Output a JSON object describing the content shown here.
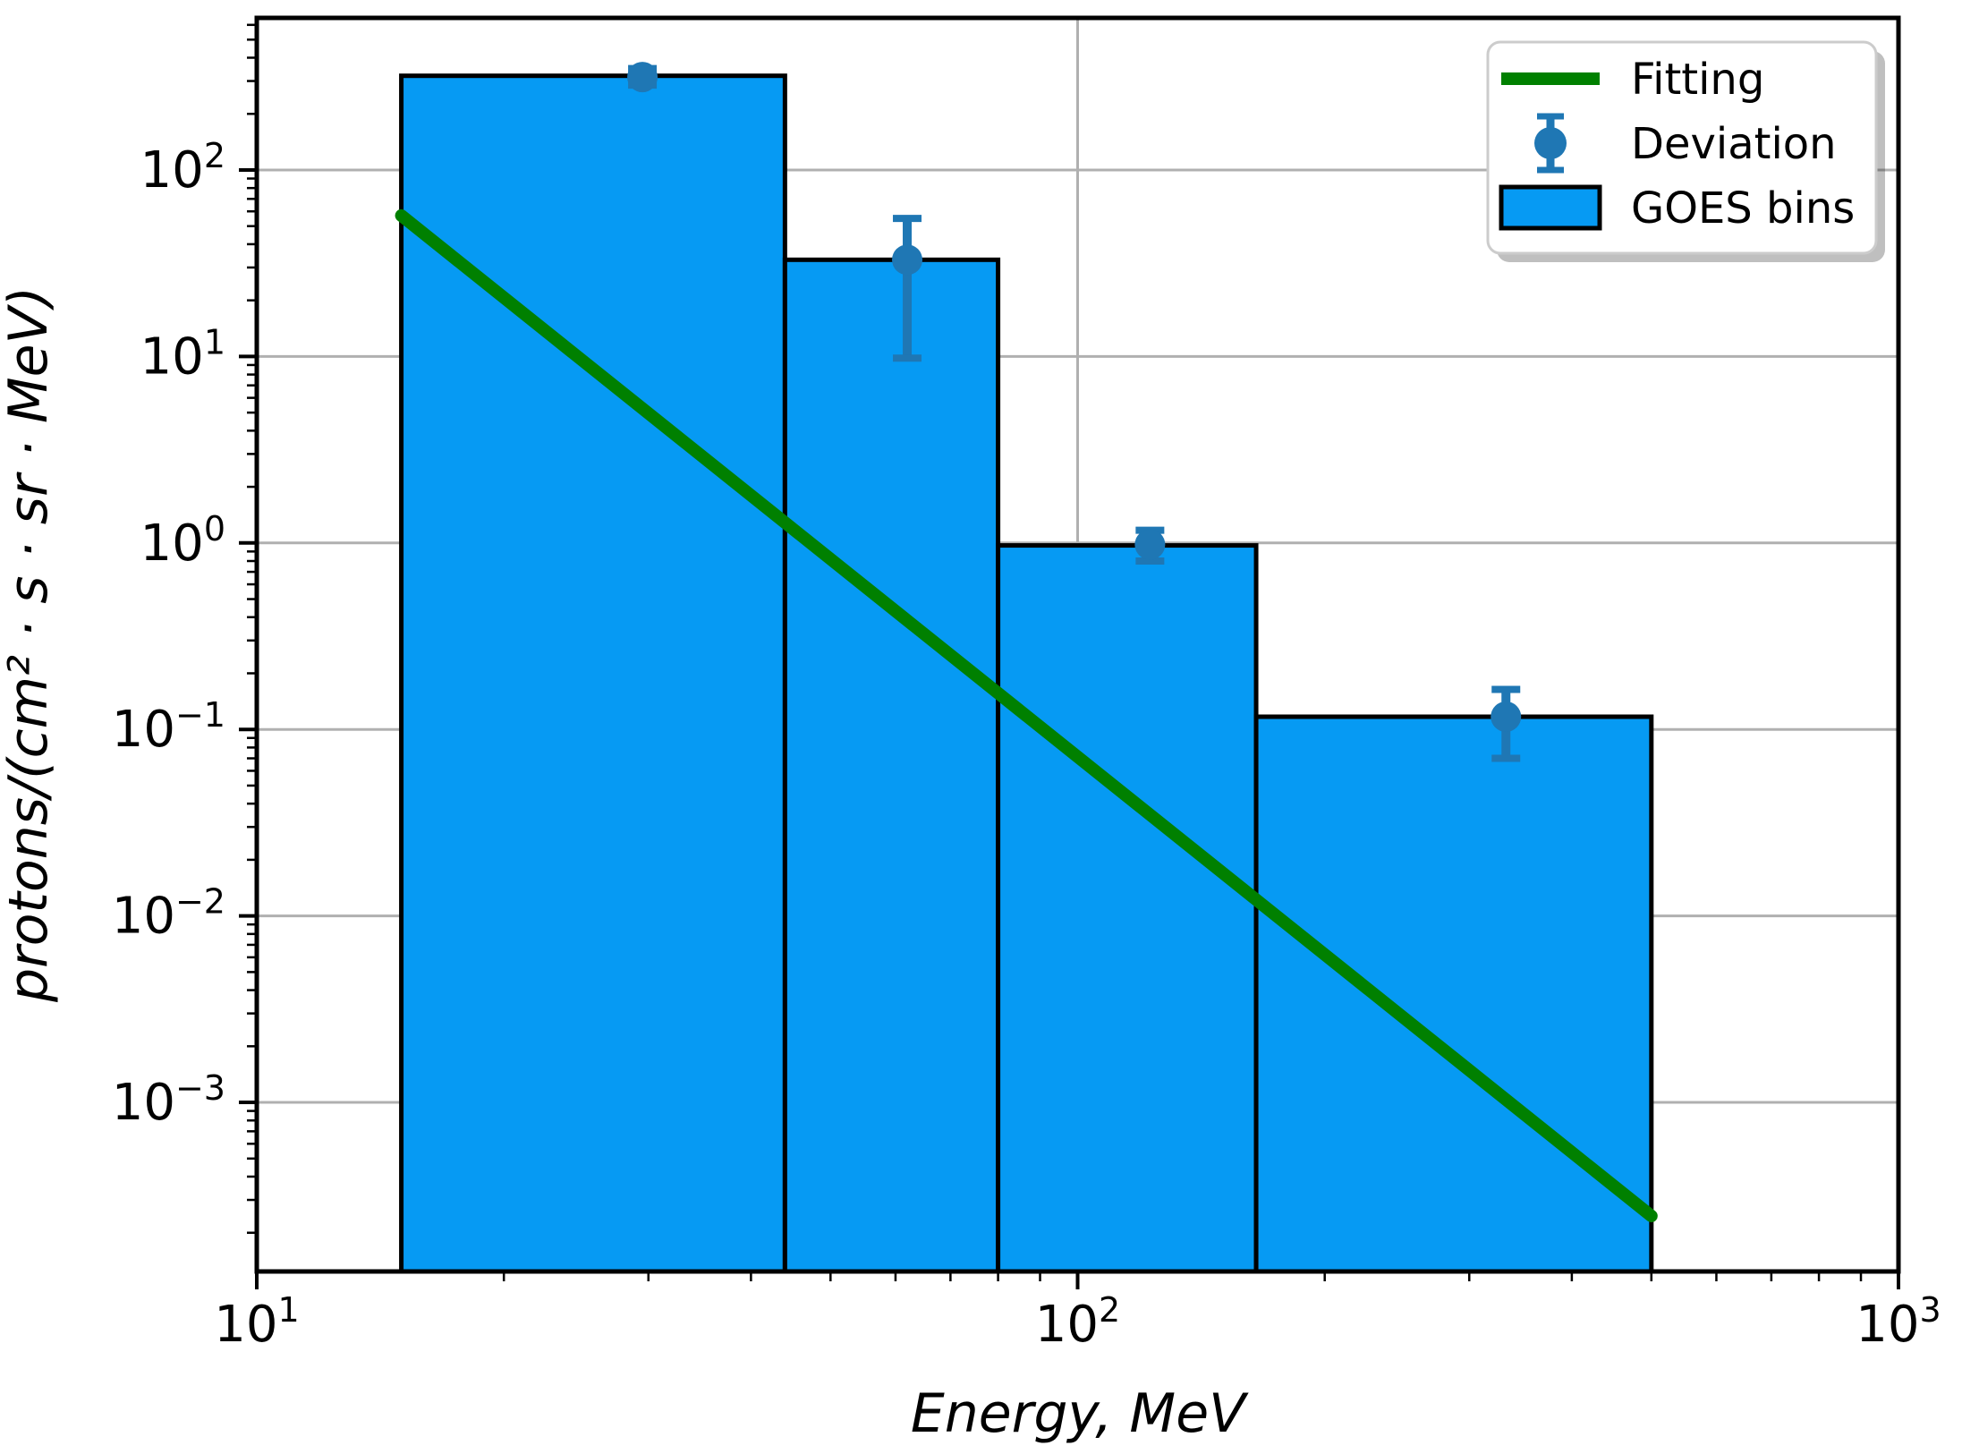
{
  "chart_data": {
    "type": "histogram",
    "title": "",
    "xlabel": "Energy, MeV",
    "ylabel": "protons/(cm² · s · sr · MeV)",
    "x_scale": "log",
    "y_scale": "log",
    "xlim": [
      10,
      1000
    ],
    "ylim": [
      0.000124,
      654
    ],
    "grid": true,
    "x_ticks": [
      {
        "value": 10,
        "base": "10",
        "exp": "1"
      },
      {
        "value": 100,
        "base": "10",
        "exp": "2"
      },
      {
        "value": 1000,
        "base": "10",
        "exp": "3"
      }
    ],
    "y_ticks": [
      {
        "value": 100,
        "base": "10",
        "exp": "2"
      },
      {
        "value": 10,
        "base": "10",
        "exp": "1"
      },
      {
        "value": 1,
        "base": "10",
        "exp": "0"
      },
      {
        "value": 0.1,
        "base": "10",
        "exp": "−1"
      },
      {
        "value": 0.01,
        "base": "10",
        "exp": "−2"
      },
      {
        "value": 0.001,
        "base": "10",
        "exp": "−3"
      }
    ],
    "series": [
      {
        "name": "GOES bins",
        "type": "bar",
        "color": "#069AF3",
        "edge_color": "#000000",
        "bins": [
          {
            "e_min": 15,
            "e_max": 44,
            "flux": 320
          },
          {
            "e_min": 44,
            "e_max": 80,
            "flux": 33
          },
          {
            "e_min": 80,
            "e_max": 165,
            "flux": 0.97
          },
          {
            "e_min": 165,
            "e_max": 500,
            "flux": 0.117
          }
        ]
      },
      {
        "name": "Fitting",
        "type": "line",
        "color": "#008000",
        "points": [
          {
            "x": 15,
            "y": 57
          },
          {
            "x": 500,
            "y": 0.000246
          }
        ]
      },
      {
        "name": "Deviation",
        "type": "errorbar",
        "color": "#1F77B4",
        "points": [
          {
            "x": 29.5,
            "y": 315,
            "y_lo": 285,
            "y_hi": 350
          },
          {
            "x": 62,
            "y": 33,
            "y_lo": 9.8,
            "y_hi": 55
          },
          {
            "x": 122.5,
            "y": 0.98,
            "y_lo": 0.8,
            "y_hi": 1.17
          },
          {
            "x": 332.5,
            "y": 0.117,
            "y_lo": 0.07,
            "y_hi": 0.164
          }
        ]
      }
    ],
    "legend": {
      "position": "upper right",
      "entries": [
        {
          "label": "Fitting",
          "swatch": "line",
          "color": "#008000"
        },
        {
          "label": "Deviation",
          "swatch": "errorbar",
          "color": "#1F77B4"
        },
        {
          "label": "GOES bins",
          "swatch": "patch",
          "fill": "#069AF3",
          "edge": "#000000"
        }
      ]
    },
    "colors": {
      "grid": "#B0B0B0",
      "spine": "#000000",
      "background": "#FFFFFF"
    }
  }
}
